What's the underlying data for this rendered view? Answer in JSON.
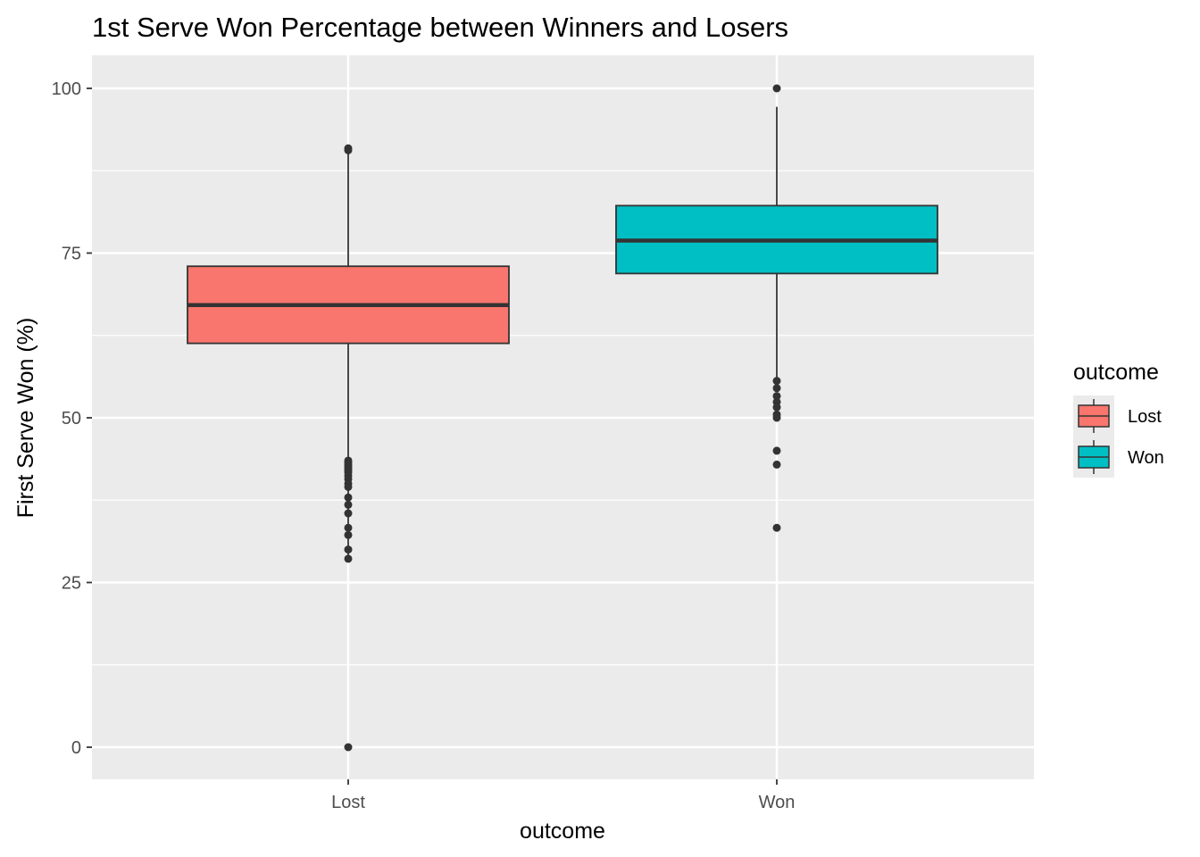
{
  "chart_data": {
    "type": "boxplot",
    "title": "1st Serve Won Percentage between Winners and Losers",
    "xlabel": "outcome",
    "ylabel": "First Serve Won (%)",
    "categories": [
      "Lost",
      "Won"
    ],
    "ylim": [
      -5,
      105
    ],
    "yticks": [
      "0",
      "25",
      "50",
      "75",
      "100"
    ],
    "grid": true,
    "legend": {
      "title": "outcome",
      "position": "right",
      "entries": [
        "Lost",
        "Won"
      ]
    },
    "series": [
      {
        "category": "Lost",
        "color": "#F8766D",
        "whisker_low": 28.6,
        "q1": 61.3,
        "median": 67.1,
        "q3": 73.0,
        "whisker_high": 90.9,
        "outliers": [
          90.9,
          90.6,
          43.5,
          43.2,
          42.9,
          42.6,
          42.3,
          42.0,
          41.7,
          41.2,
          40.7,
          40.0,
          39.5,
          37.9,
          36.8,
          35.5,
          33.3,
          32.2,
          30.0,
          28.6,
          0
        ]
      },
      {
        "category": "Won",
        "color": "#00BFC4",
        "whisker_low": 55.6,
        "q1": 71.9,
        "median": 76.9,
        "q3": 82.2,
        "whisker_high": 97.2,
        "outliers": [
          100,
          55.6,
          54.5,
          53.3,
          52.4,
          51.6,
          50.5,
          50.0,
          45.0,
          42.9,
          33.3
        ]
      }
    ]
  }
}
